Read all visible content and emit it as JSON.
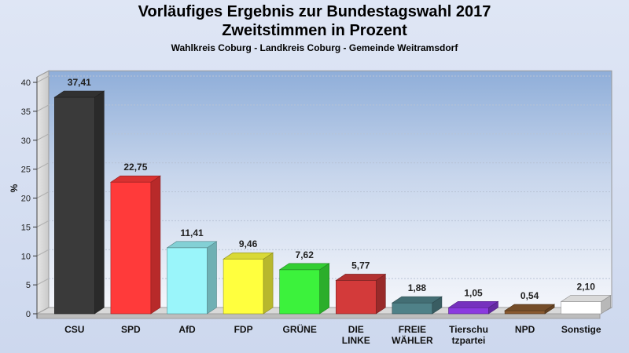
{
  "chart_data": {
    "type": "bar",
    "title": "Vorläufiges Ergebnis zur Bundestagswahl 2017",
    "title2": "Zweitstimmen in Prozent",
    "subtitle": "Wahlkreis Coburg - Landkreis Coburg - Gemeinde Weitramsdorf",
    "ylabel": "%",
    "xlabel": "",
    "ylim": [
      0,
      42
    ],
    "yticks": [
      "0",
      "5",
      "10",
      "15",
      "20",
      "25",
      "30",
      "35",
      "40"
    ],
    "grid": true,
    "categories": [
      [
        "CSU"
      ],
      [
        "SPD"
      ],
      [
        "AfD"
      ],
      [
        "FDP"
      ],
      [
        "GRÜNE"
      ],
      [
        "DIE",
        "LINKE"
      ],
      [
        "FREIE",
        "WÄHLER"
      ],
      [
        "Tierschu",
        "tzpartei"
      ],
      [
        "NPD"
      ],
      [
        "Sonstige"
      ]
    ],
    "values": [
      37.41,
      22.75,
      11.41,
      9.46,
      7.62,
      5.77,
      1.88,
      1.05,
      0.54,
      2.1
    ],
    "value_labels": [
      "37,41",
      "22,75",
      "11,41",
      "9,46",
      "7,62",
      "5,77",
      "1,88",
      "1,05",
      "0,54",
      "2,10"
    ],
    "colors": [
      "#3a3a3a",
      "#ff3a3a",
      "#9af5fa",
      "#ffff3e",
      "#3cf23c",
      "#d33a3a",
      "#4f8188",
      "#8b3ae0",
      "#8a5a30",
      "#ffffff"
    ]
  }
}
